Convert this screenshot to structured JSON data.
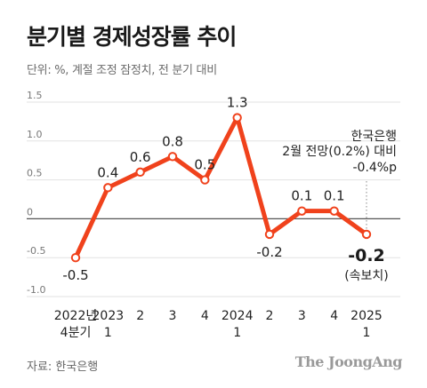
{
  "title": "분기별 경제성장률 추이",
  "subtitle": "단위: %, 계절 조정 잠정치, 전 분기 대비",
  "source": "자료: 한국은행",
  "brand": "The JoongAng",
  "colors": {
    "line": "#F0421C",
    "marker_fill": "#ffffff",
    "zero_line": "#555555",
    "grid": "#e2e2e2"
  },
  "chart_data": {
    "type": "line",
    "title": "분기별 경제성장률 추이",
    "ylabel": "%",
    "ylim": [
      -1.0,
      1.5
    ],
    "yticks": [
      "1.5",
      "1.0",
      "0.5",
      "0",
      "-0.5",
      "-1.0"
    ],
    "ytick_values": [
      1.5,
      1.0,
      0.5,
      0,
      -0.5,
      -1.0
    ],
    "grid": true,
    "categories": [
      [
        "2022년",
        "4분기"
      ],
      [
        "2023",
        "1"
      ],
      [
        "2"
      ],
      [
        "3"
      ],
      [
        "4"
      ],
      [
        "2024",
        "1"
      ],
      [
        "2"
      ],
      [
        "3"
      ],
      [
        "4"
      ],
      [
        "2025",
        "1"
      ]
    ],
    "values": [
      -0.5,
      0.4,
      0.6,
      0.8,
      0.5,
      1.3,
      -0.2,
      0.1,
      0.1,
      -0.2
    ],
    "data_labels": [
      "-0.5",
      "0.4",
      "0.6",
      "0.8",
      "0.5",
      "1.3",
      "-0.2",
      "0.1",
      "0.1",
      "-0.2"
    ],
    "last_label_note": "(속보치)",
    "annotation": [
      "한국은행",
      "2월 전망(0.2%) 대비",
      "-0.4%p"
    ]
  }
}
